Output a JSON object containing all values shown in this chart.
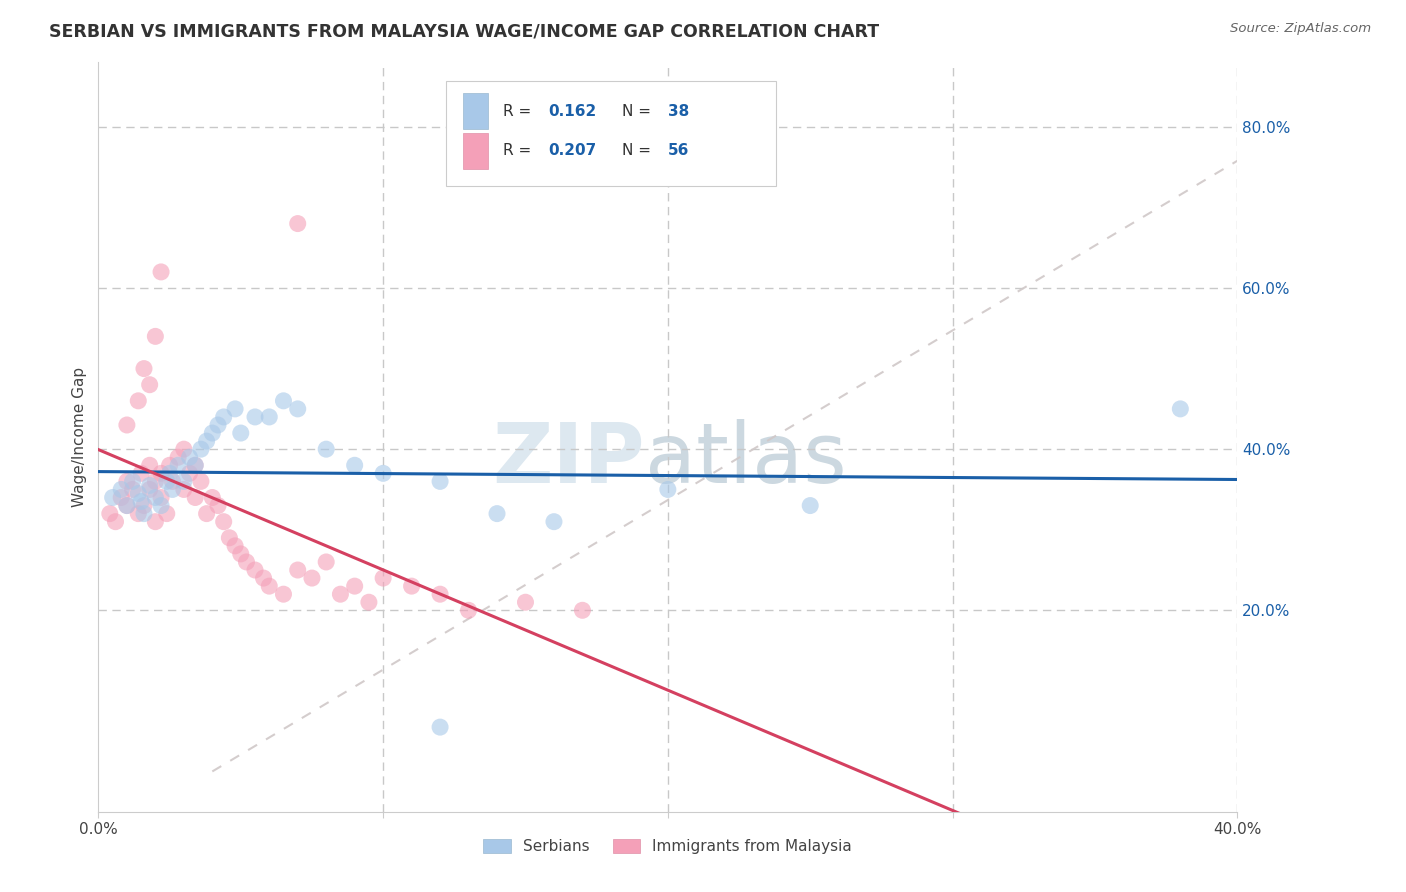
{
  "title": "SERBIAN VS IMMIGRANTS FROM MALAYSIA WAGE/INCOME GAP CORRELATION CHART",
  "source": "Source: ZipAtlas.com",
  "ylabel": "Wage/Income Gap",
  "xlim": [
    0.0,
    0.4
  ],
  "ylim": [
    -0.05,
    0.88
  ],
  "xticks": [
    0.0,
    0.1,
    0.2,
    0.3,
    0.4
  ],
  "xticklabels": [
    "0.0%",
    "",
    "",
    "",
    "40.0%"
  ],
  "ytick_vals": [
    0.2,
    0.4,
    0.6,
    0.8
  ],
  "ytick_labels": [
    "20.0%",
    "40.0%",
    "60.0%",
    "80.0%"
  ],
  "grid_color": "#c8c8c8",
  "background_color": "#ffffff",
  "legend_label1": "Serbians",
  "legend_label2": "Immigrants from Malaysia",
  "blue_color": "#a8c8e8",
  "pink_color": "#f4a0b8",
  "blue_line_color": "#1a5fa8",
  "pink_line_color": "#d44060",
  "diag_color": "#d0c8c8",
  "watermark_zip_color": "#dde8f0",
  "watermark_atlas_color": "#ccd8e0",
  "serbian_x": [
    0.005,
    0.008,
    0.01,
    0.012,
    0.014,
    0.015,
    0.016,
    0.018,
    0.02,
    0.022,
    0.024,
    0.025,
    0.026,
    0.028,
    0.03,
    0.032,
    0.034,
    0.036,
    0.038,
    0.04,
    0.042,
    0.044,
    0.048,
    0.05,
    0.055,
    0.06,
    0.065,
    0.07,
    0.08,
    0.09,
    0.1,
    0.12,
    0.14,
    0.16,
    0.2,
    0.25,
    0.38,
    0.12
  ],
  "serbian_y": [
    0.34,
    0.35,
    0.33,
    0.36,
    0.345,
    0.335,
    0.32,
    0.355,
    0.34,
    0.33,
    0.36,
    0.37,
    0.35,
    0.38,
    0.36,
    0.39,
    0.38,
    0.4,
    0.41,
    0.42,
    0.43,
    0.44,
    0.45,
    0.42,
    0.44,
    0.44,
    0.46,
    0.45,
    0.4,
    0.38,
    0.37,
    0.36,
    0.32,
    0.31,
    0.35,
    0.33,
    0.45,
    0.055
  ],
  "malaysia_x": [
    0.004,
    0.006,
    0.008,
    0.01,
    0.01,
    0.012,
    0.014,
    0.015,
    0.016,
    0.018,
    0.018,
    0.02,
    0.02,
    0.022,
    0.022,
    0.024,
    0.025,
    0.026,
    0.028,
    0.03,
    0.03,
    0.032,
    0.034,
    0.034,
    0.036,
    0.038,
    0.04,
    0.042,
    0.044,
    0.046,
    0.048,
    0.05,
    0.052,
    0.055,
    0.058,
    0.06,
    0.065,
    0.07,
    0.075,
    0.08,
    0.085,
    0.09,
    0.095,
    0.1,
    0.11,
    0.12,
    0.13,
    0.15,
    0.17,
    0.01,
    0.014,
    0.016,
    0.018,
    0.02,
    0.022,
    0.07
  ],
  "malaysia_y": [
    0.32,
    0.31,
    0.34,
    0.33,
    0.36,
    0.35,
    0.32,
    0.37,
    0.33,
    0.35,
    0.38,
    0.31,
    0.36,
    0.34,
    0.37,
    0.32,
    0.38,
    0.36,
    0.39,
    0.35,
    0.4,
    0.37,
    0.34,
    0.38,
    0.36,
    0.32,
    0.34,
    0.33,
    0.31,
    0.29,
    0.28,
    0.27,
    0.26,
    0.25,
    0.24,
    0.23,
    0.22,
    0.25,
    0.24,
    0.26,
    0.22,
    0.23,
    0.21,
    0.24,
    0.23,
    0.22,
    0.2,
    0.21,
    0.2,
    0.43,
    0.46,
    0.5,
    0.48,
    0.54,
    0.62,
    0.68
  ]
}
